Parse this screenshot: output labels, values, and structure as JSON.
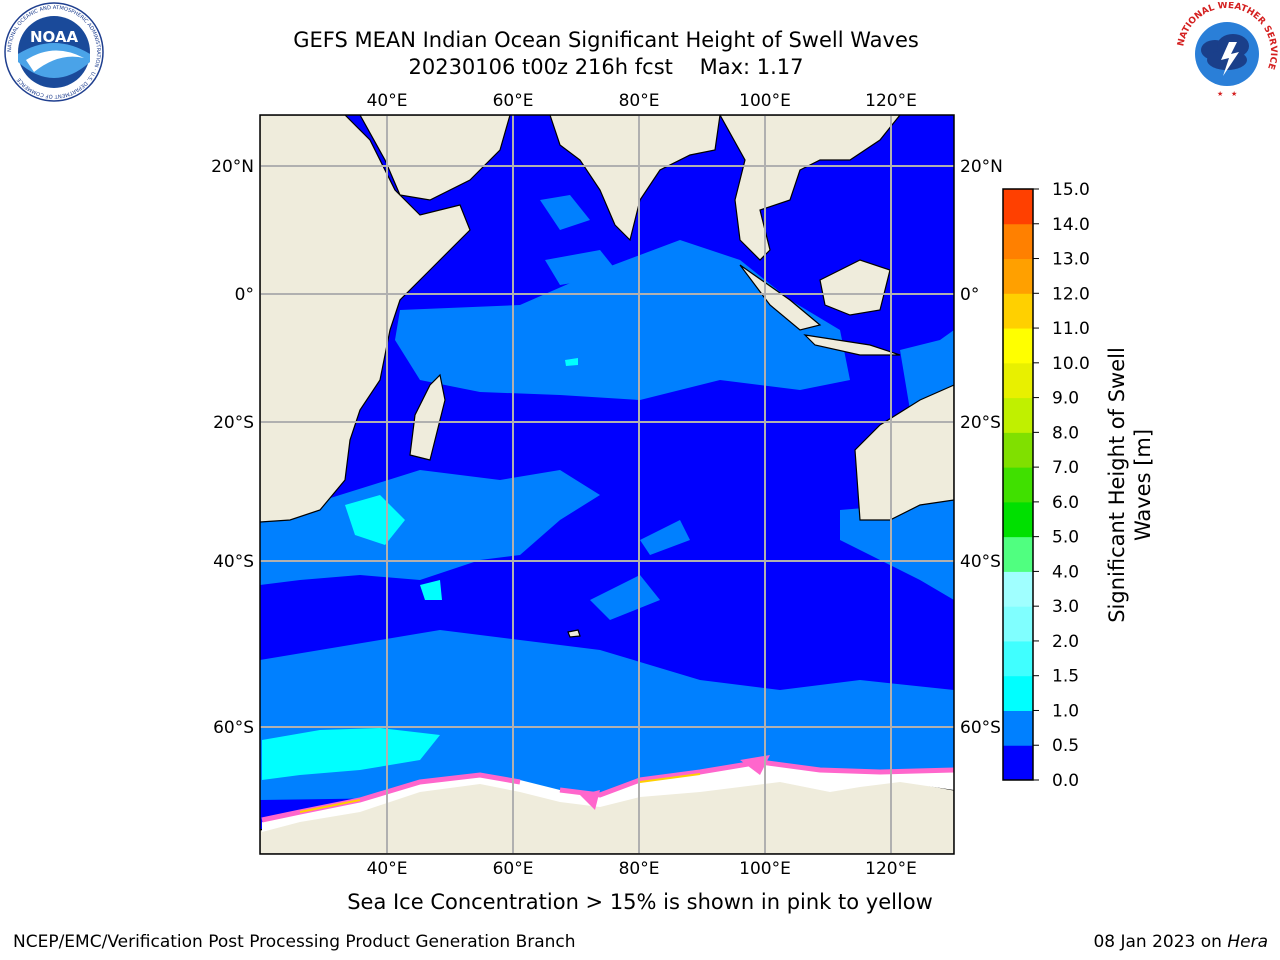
{
  "title": {
    "line1": "GEFS MEAN Indian Ocean Significant Height of Swell Waves",
    "line2": "20230106 t00z 216h fcst    Max: 1.17"
  },
  "map": {
    "lon_labels": [
      "40°E",
      "60°E",
      "80°E",
      "100°E",
      "120°E"
    ],
    "lat_labels": [
      "20°N",
      "0°",
      "20°S",
      "40°S",
      "60°S"
    ]
  },
  "colorbar": {
    "label_line1": "Significant Height of Swell",
    "label_line2": "Waves [m]",
    "ticks": [
      "0.0",
      "0.5",
      "1.0",
      "1.5",
      "2.0",
      "3.0",
      "4.0",
      "5.0",
      "6.0",
      "7.0",
      "8.0",
      "9.0",
      "10.0",
      "11.0",
      "12.0",
      "13.0",
      "14.0",
      "15.0"
    ],
    "colors": [
      "#0000ff",
      "#0080ff",
      "#00ffff",
      "#40ffff",
      "#80ffff",
      "#a0ffff",
      "#50ff80",
      "#00e000",
      "#40e000",
      "#80e000",
      "#c0f000",
      "#e8f000",
      "#ffff00",
      "#ffd000",
      "#ffa000",
      "#ff8000",
      "#ff4000",
      "#ff0000"
    ]
  },
  "caption": "Sea Ice Concentration > 15% is shown in pink to yellow",
  "footer": {
    "left": "NCEP/EMC/Verification Post Processing Product Generation Branch",
    "right_prefix": "08 Jan 2023 on ",
    "right_host": "Hera"
  },
  "logos": {
    "noaa_text": "NOAA",
    "noaa_ring": "NATIONAL OCEANIC AND ATMOSPHERIC ADMINISTRATION · U.S. DEPARTMENT OF COMMERCE",
    "nws_ring": "NATIONAL WEATHER SERVICE"
  },
  "colors": {
    "land": "#efecdc",
    "ocean_low": "#0000ff",
    "ocean_mid": "#0080ff",
    "ocean_cyan": "#00ffff",
    "ice_pink": "#ff66cc",
    "grid": "#b0b0b0"
  }
}
